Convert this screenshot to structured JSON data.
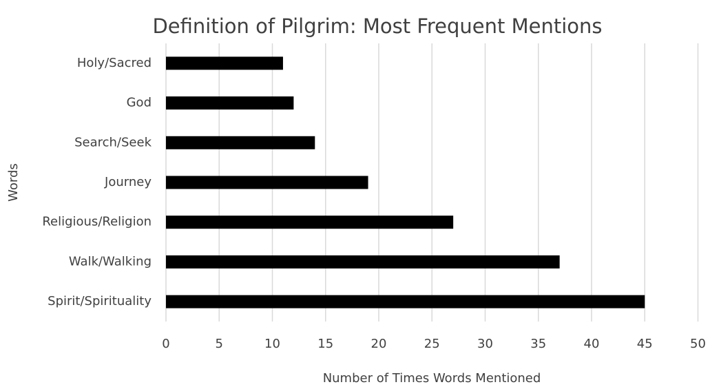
{
  "chart_data": {
    "type": "hbar",
    "title": "Definition of Pilgrim:  Most Frequent Mentions",
    "x_label": "Number of Times Words Mentioned",
    "y_label": "Words",
    "categories": [
      "Holy/Sacred",
      "God",
      "Search/Seek",
      "Journey",
      "Religious/Religion",
      "Walk/Walking",
      "Spirit/Spirituality"
    ],
    "values": [
      11,
      12,
      14,
      19,
      27,
      37,
      45
    ],
    "color": "#000000",
    "xlim": [
      0,
      50
    ],
    "xticks": [
      0,
      5,
      10,
      15,
      20,
      25,
      30,
      35,
      40,
      45,
      50
    ],
    "grid": true
  }
}
